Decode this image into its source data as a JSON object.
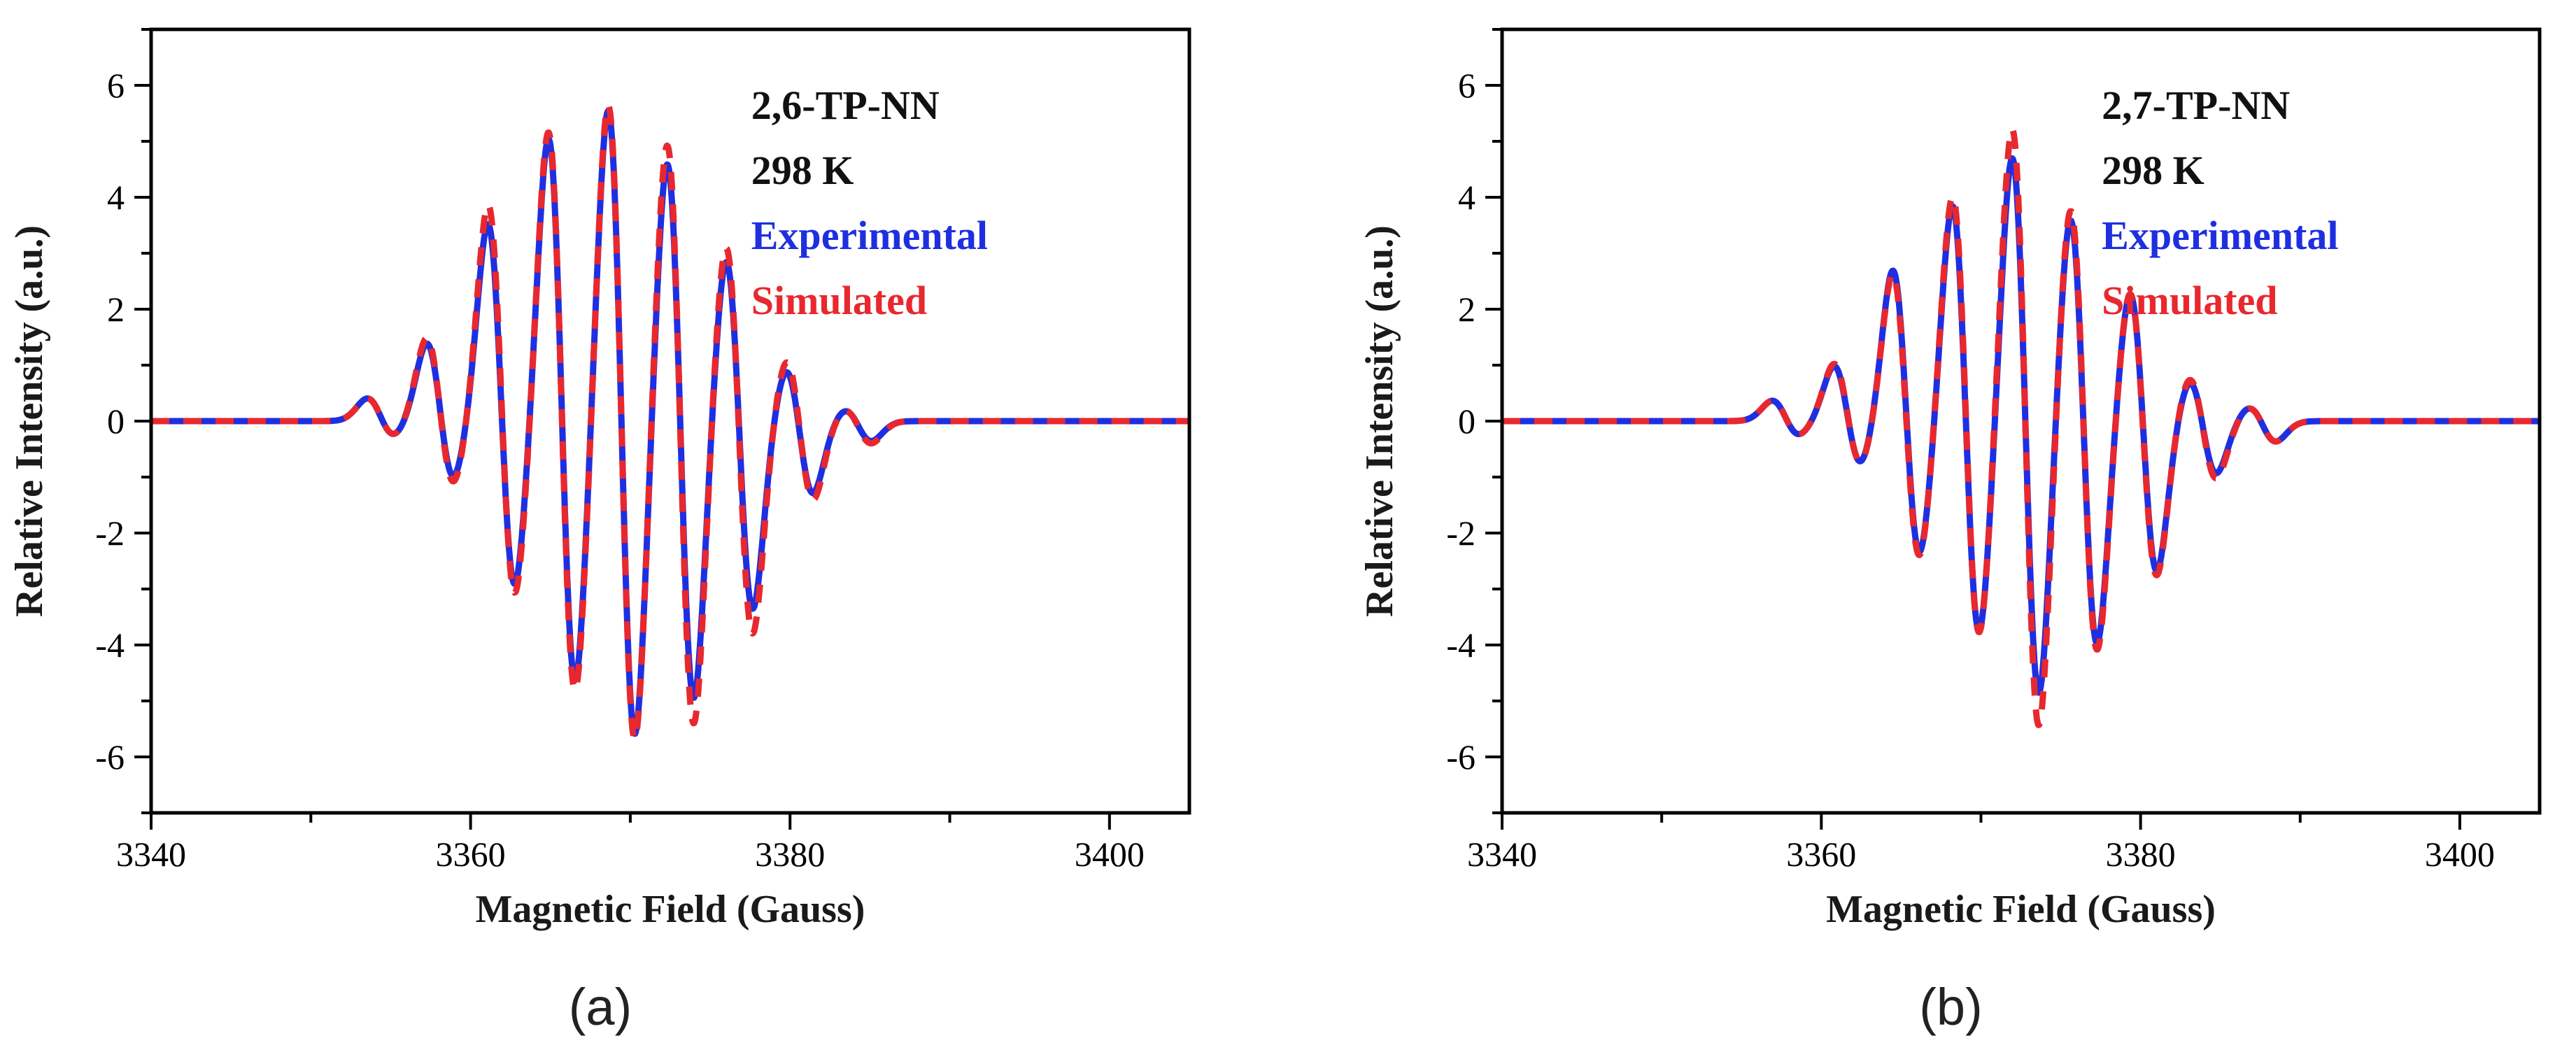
{
  "chart_data": [
    {
      "type": "line",
      "panel_label": "(a)",
      "xlabel": "Magnetic Field (Gauss)",
      "ylabel": "Relative Intensity (a.u.)",
      "xlim": [
        3340,
        3405
      ],
      "ylim": [
        -7,
        7
      ],
      "xticks": [
        3340,
        3360,
        3380,
        3400
      ],
      "yticks": [
        -6,
        -4,
        -2,
        0,
        2,
        4,
        6
      ],
      "legend": {
        "position": "top-right",
        "lines": [
          {
            "text": "2,6-TP-NN",
            "color": "#111111"
          },
          {
            "text": "298 K",
            "color": "#111111"
          },
          {
            "text": "Experimental",
            "color": "#1f2fe0"
          },
          {
            "text": "Simulated",
            "color": "#e8282f"
          }
        ]
      },
      "series": [
        {
          "name": "Experimental",
          "color": "#1f2fe0",
          "style": "solid",
          "x": [
            3340,
            3352,
            3353.6,
            3355.0,
            3357.3,
            3358.8,
            3361.1,
            3362.7,
            3364.9,
            3366.5,
            3368.7,
            3370.2,
            3372.4,
            3373.9,
            3376.1,
            3377.6,
            3379.9,
            3381.4,
            3383.7,
            3385.0,
            3388,
            3405
          ],
          "y": [
            0,
            0.1,
            0.45,
            -0.2,
            1.5,
            -0.9,
            3.7,
            -2.8,
            5.2,
            -4.6,
            5.6,
            -5.7,
            4.6,
            -5.1,
            2.8,
            -3.5,
            0.8,
            -1.4,
            0.15,
            -0.4,
            0,
            0
          ]
        },
        {
          "name": "Simulated",
          "color": "#e8282f",
          "style": "dashed",
          "x": [
            3340,
            3352,
            3353.6,
            3355.0,
            3357.3,
            3358.8,
            3361.1,
            3362.7,
            3364.9,
            3366.5,
            3368.7,
            3370.2,
            3372.4,
            3373.9,
            3376.1,
            3377.6,
            3379.9,
            3381.4,
            3383.7,
            3385.0,
            3388,
            3405
          ],
          "y": [
            0,
            0.1,
            0.45,
            -0.2,
            1.6,
            -1.0,
            4.1,
            -2.9,
            5.3,
            -4.8,
            5.7,
            -5.8,
            4.9,
            -5.6,
            3.0,
            -4.0,
            1.0,
            -1.5,
            0.15,
            -0.45,
            0,
            0
          ]
        }
      ]
    },
    {
      "type": "line",
      "panel_label": "(b)",
      "xlabel": "Magnetic Field (Gauss)",
      "ylabel": "Relative Intensity (a.u.)",
      "xlim": [
        3340,
        3405
      ],
      "ylim": [
        -7,
        7
      ],
      "xticks": [
        3340,
        3360,
        3380,
        3400
      ],
      "yticks": [
        -6,
        -4,
        -2,
        0,
        2,
        4,
        6
      ],
      "legend": {
        "position": "top-right",
        "lines": [
          {
            "text": "2,7-TP-NN",
            "color": "#111111"
          },
          {
            "text": "298 K",
            "color": "#111111"
          },
          {
            "text": "Experimental",
            "color": "#1f2fe0"
          },
          {
            "text": "Simulated",
            "color": "#e8282f"
          }
        ]
      },
      "series": [
        {
          "name": "Experimental",
          "color": "#1f2fe0",
          "style": "solid",
          "x": [
            3340,
            3355,
            3357.1,
            3358.3,
            3360.9,
            3362.3,
            3364.6,
            3366.0,
            3368.3,
            3369.8,
            3372.1,
            3373.5,
            3375.7,
            3377.2,
            3379.5,
            3380.9,
            3383.2,
            3384.7,
            3387.0,
            3388.4,
            3391,
            3405
          ],
          "y": [
            0,
            0.05,
            0.4,
            -0.2,
            1.05,
            -0.7,
            2.8,
            -2.3,
            3.9,
            -3.8,
            4.7,
            -5.0,
            3.6,
            -4.1,
            2.2,
            -2.8,
            0.65,
            -1.0,
            0.2,
            -0.4,
            0,
            0
          ]
        },
        {
          "name": "Simulated",
          "color": "#e8282f",
          "style": "dashed",
          "x": [
            3340,
            3355,
            3357.1,
            3358.3,
            3360.9,
            3362.3,
            3364.6,
            3366.0,
            3368.3,
            3369.8,
            3372.1,
            3373.5,
            3375.7,
            3377.2,
            3379.5,
            3380.9,
            3383.2,
            3384.7,
            3387.0,
            3388.4,
            3391,
            3405
          ],
          "y": [
            0,
            0.05,
            0.4,
            -0.2,
            1.1,
            -0.7,
            2.7,
            -2.4,
            4.1,
            -3.8,
            5.2,
            -5.6,
            3.8,
            -4.2,
            2.2,
            -2.9,
            0.7,
            -1.1,
            0.2,
            -0.4,
            0,
            0
          ]
        }
      ]
    }
  ]
}
